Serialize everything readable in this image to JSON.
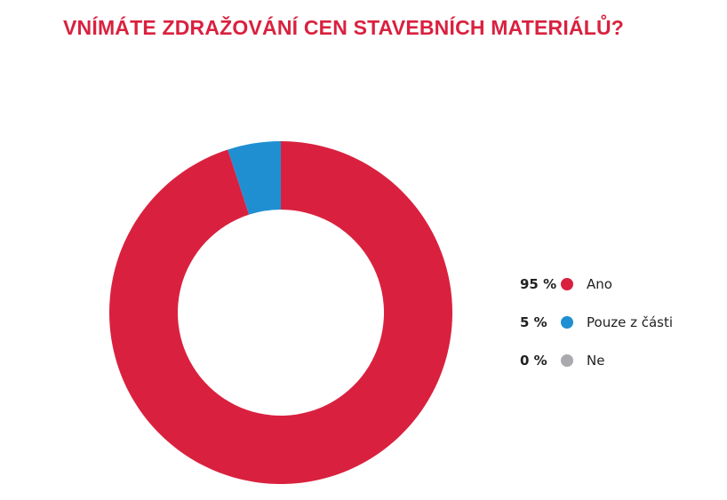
{
  "title": "VNÍMÁTE ZDRAŽOVÁNÍ CEN STAVEBNÍCH MATERIÁLŮ?",
  "chart_data": {
    "type": "pie",
    "donut": true,
    "title": "VNÍMÁTE ZDRAŽOVÁNÍ CEN STAVEBNÍCH MATERIÁLŮ?",
    "legend_position": "right",
    "categories": [
      "Ano",
      "Pouze z části",
      "Ne"
    ],
    "values": [
      95,
      5,
      0
    ],
    "value_labels": [
      "95 %",
      "5 %",
      "0 %"
    ],
    "colors": [
      "#d9213f",
      "#1f8fd2",
      "#a9a9ae"
    ]
  },
  "legend": [
    {
      "value": "95 %",
      "label": "Ano",
      "color": "#d9213f"
    },
    {
      "value": "5 %",
      "label": "Pouze z části",
      "color": "#1f8fd2"
    },
    {
      "value": "0 %",
      "label": "Ne",
      "color": "#a9a9ae"
    }
  ]
}
